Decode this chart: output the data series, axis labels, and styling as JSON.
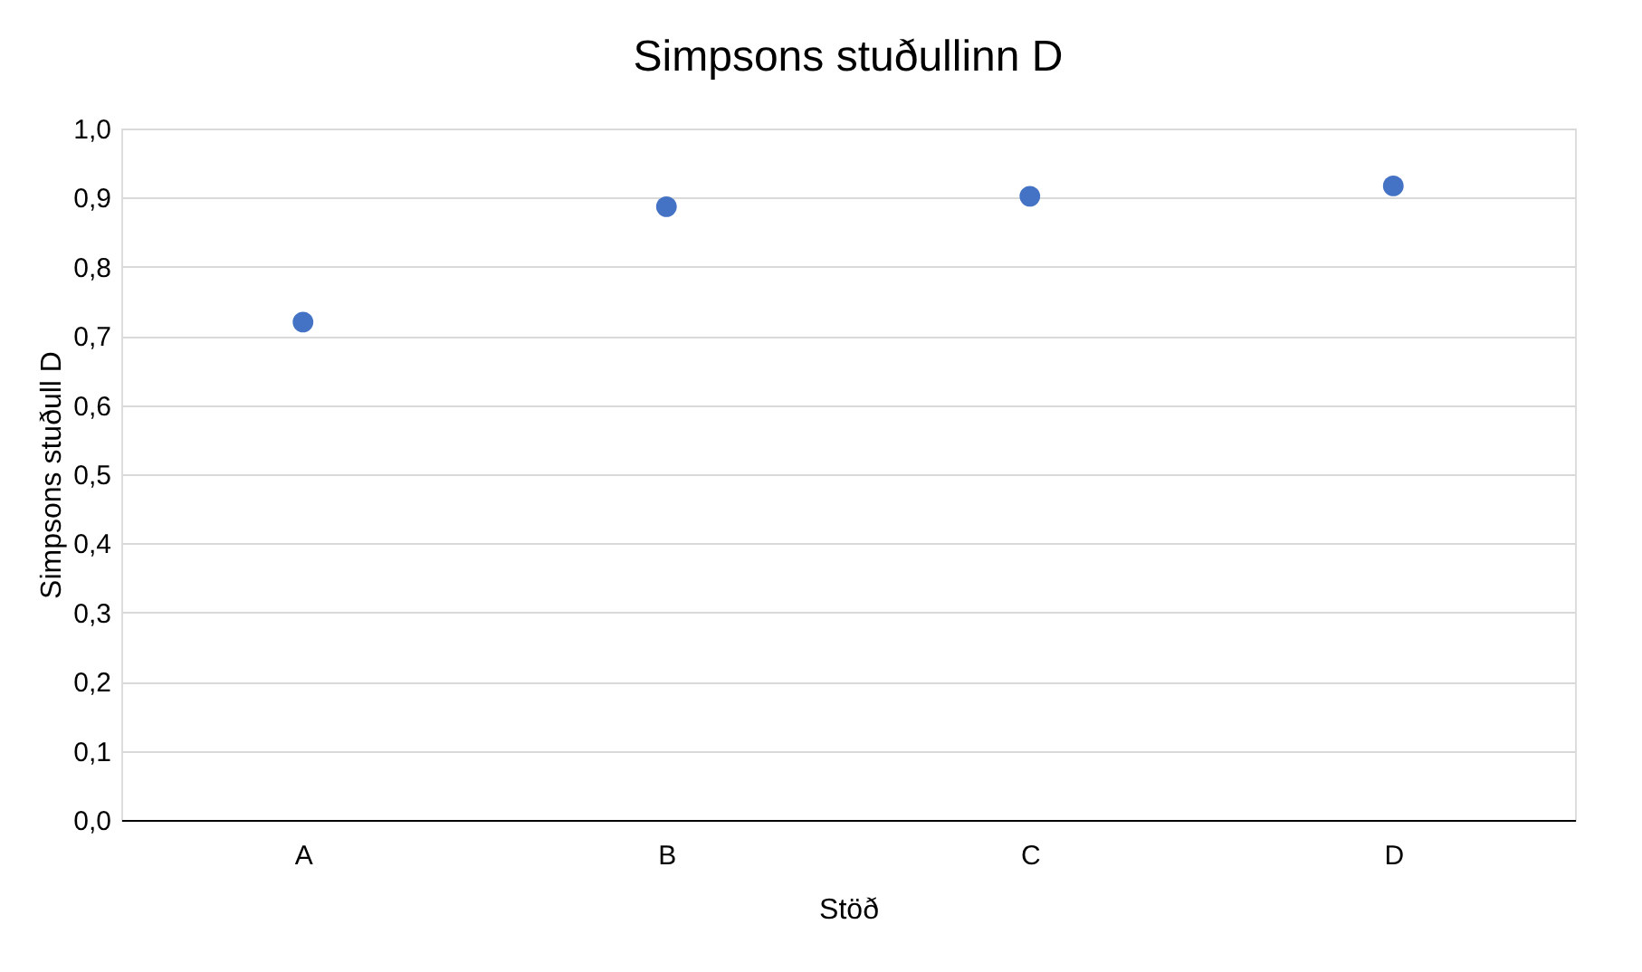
{
  "chart_data": {
    "type": "scatter",
    "title": "Simpsons stuðullinn D",
    "xlabel": "Stöð",
    "ylabel": "Simpsons stuðull D",
    "categories": [
      "A",
      "B",
      "C",
      "D"
    ],
    "series": [
      {
        "color": "#4472c4",
        "values": [
          0.72,
          0.887,
          0.902,
          0.917
        ]
      }
    ],
    "ylim": [
      0,
      1
    ],
    "yticks": [
      {
        "value": 0,
        "label": "0,0"
      },
      {
        "value": 0.1,
        "label": "0,1"
      },
      {
        "value": 0.2,
        "label": "0,2"
      },
      {
        "value": 0.3,
        "label": "0,3"
      },
      {
        "value": 0.4,
        "label": "0,4"
      },
      {
        "value": 0.5,
        "label": "0,5"
      },
      {
        "value": 0.6,
        "label": "0,6"
      },
      {
        "value": 0.7,
        "label": "0,7"
      },
      {
        "value": 0.8,
        "label": "0,8"
      },
      {
        "value": 0.9,
        "label": "0,9"
      },
      {
        "value": 1.0,
        "label": "1,0"
      }
    ],
    "grid": "y",
    "legend": false,
    "marker": "circle"
  }
}
